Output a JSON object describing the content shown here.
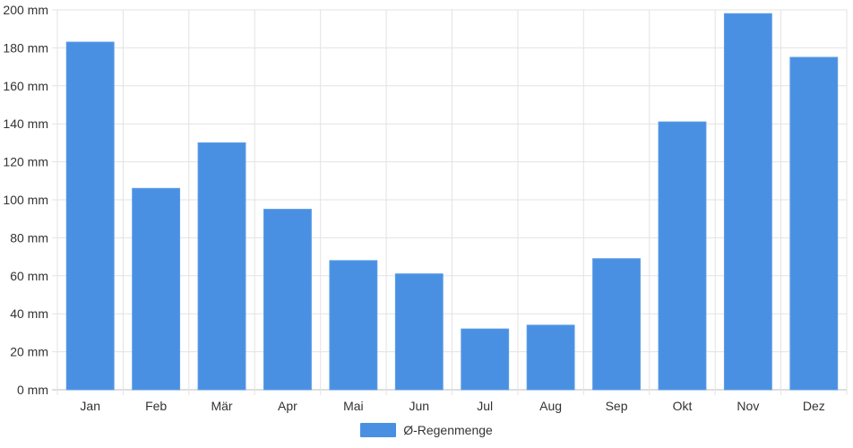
{
  "chart_data": {
    "type": "bar",
    "categories": [
      "Jan",
      "Feb",
      "Mär",
      "Apr",
      "Mai",
      "Jun",
      "Jul",
      "Aug",
      "Sep",
      "Okt",
      "Nov",
      "Dez"
    ],
    "series": [
      {
        "name": "Ø-Regenmenge",
        "values": [
          183,
          106,
          130,
          95,
          68,
          61,
          32,
          34,
          69,
          141,
          198,
          175
        ],
        "color": "#4a90e2"
      }
    ],
    "ylim": [
      0,
      200
    ],
    "yticks": [
      0,
      20,
      40,
      60,
      80,
      100,
      120,
      140,
      160,
      180,
      200
    ],
    "ytick_labels": [
      "0 mm",
      "20 mm",
      "40 mm",
      "60 mm",
      "80 mm",
      "100 mm",
      "120 mm",
      "140 mm",
      "160 mm",
      "180 mm",
      "200 mm"
    ],
    "grid": true,
    "legend_position": "bottom-center"
  }
}
